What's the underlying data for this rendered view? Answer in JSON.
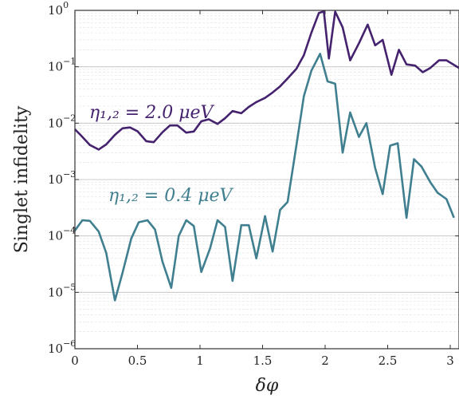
{
  "chart_data": {
    "type": "line",
    "title": "",
    "xlabel": "δφ",
    "ylabel": "Singlet infidelity",
    "xlim": [
      0,
      3.07
    ],
    "ylim": [
      1e-06,
      1
    ],
    "yscale": "log",
    "grid": {
      "x": false,
      "y_major": true,
      "y_minor": true
    },
    "xticks": [
      0,
      0.5,
      1,
      1.5,
      2,
      2.5,
      3
    ],
    "xtick_labels": [
      "0",
      "0.5",
      "1",
      "1.5",
      "2",
      "2.5",
      "3"
    ],
    "yticks": [
      1e-06,
      1e-05,
      0.0001,
      0.001,
      0.01,
      0.1,
      1
    ],
    "ytick_labels": [
      {
        "base": "10",
        "exp": "−6"
      },
      {
        "base": "10",
        "exp": "−5"
      },
      {
        "base": "10",
        "exp": "−4"
      },
      {
        "base": "10",
        "exp": "−3"
      },
      {
        "base": "10",
        "exp": "−2"
      },
      {
        "base": "10",
        "exp": "−1"
      },
      {
        "base": "10",
        "exp": "0"
      }
    ],
    "series": [
      {
        "annotation": "η₁,₂ = 2.0 μeV",
        "color": "#45226e",
        "points": [
          [
            0,
            0.0078
          ],
          [
            0.05,
            0.006
          ],
          [
            0.12,
            0.0041
          ],
          [
            0.19,
            0.0034
          ],
          [
            0.25,
            0.0042
          ],
          [
            0.32,
            0.0062
          ],
          [
            0.38,
            0.0081
          ],
          [
            0.44,
            0.0084
          ],
          [
            0.5,
            0.0072
          ],
          [
            0.57,
            0.0048
          ],
          [
            0.63,
            0.0046
          ],
          [
            0.7,
            0.0069
          ],
          [
            0.76,
            0.0091
          ],
          [
            0.82,
            0.0091
          ],
          [
            0.89,
            0.0068
          ],
          [
            0.95,
            0.0071
          ],
          [
            1.01,
            0.0108
          ],
          [
            1.07,
            0.0117
          ],
          [
            1.14,
            0.0097
          ],
          [
            1.2,
            0.0122
          ],
          [
            1.26,
            0.0164
          ],
          [
            1.33,
            0.015
          ],
          [
            1.39,
            0.0194
          ],
          [
            1.45,
            0.0237
          ],
          [
            1.52,
            0.028
          ],
          [
            1.58,
            0.035
          ],
          [
            1.64,
            0.045
          ],
          [
            1.7,
            0.062
          ],
          [
            1.77,
            0.092
          ],
          [
            1.83,
            0.16
          ],
          [
            1.89,
            0.4
          ],
          [
            1.95,
            0.9
          ],
          [
            1.99,
            0.96
          ],
          [
            2.03,
            0.14
          ],
          [
            2.08,
            0.95
          ],
          [
            2.14,
            0.5
          ],
          [
            2.2,
            0.13
          ],
          [
            2.27,
            0.26
          ],
          [
            2.34,
            0.56
          ],
          [
            2.4,
            0.24
          ],
          [
            2.46,
            0.3
          ],
          [
            2.53,
            0.072
          ],
          [
            2.59,
            0.2
          ],
          [
            2.65,
            0.11
          ],
          [
            2.72,
            0.105
          ],
          [
            2.78,
            0.08
          ],
          [
            2.84,
            0.095
          ],
          [
            2.91,
            0.13
          ],
          [
            2.97,
            0.13
          ],
          [
            3.07,
            0.095
          ]
        ]
      },
      {
        "annotation": "η₁,₂ = 0.4 μeV",
        "color": "#3f7f8f",
        "points": [
          [
            0,
            0.000125
          ],
          [
            0.06,
            0.00019
          ],
          [
            0.12,
            0.000185
          ],
          [
            0.19,
            0.00012
          ],
          [
            0.25,
            5e-05
          ],
          [
            0.32,
            7.2e-06
          ],
          [
            0.38,
            2.2e-05
          ],
          [
            0.45,
            9e-05
          ],
          [
            0.51,
            0.000175
          ],
          [
            0.58,
            0.00019
          ],
          [
            0.64,
            0.00013
          ],
          [
            0.7,
            3.5e-05
          ],
          [
            0.77,
            1.2e-05
          ],
          [
            0.83,
            0.0001
          ],
          [
            0.89,
            0.00019
          ],
          [
            0.95,
            0.00015
          ],
          [
            1.01,
            2.3e-05
          ],
          [
            1.08,
            6e-05
          ],
          [
            1.14,
            0.00019
          ],
          [
            1.2,
            0.000145
          ],
          [
            1.26,
            1.6e-05
          ],
          [
            1.33,
            0.000155
          ],
          [
            1.39,
            0.000155
          ],
          [
            1.45,
            4e-05
          ],
          [
            1.52,
            0.000225
          ],
          [
            1.58,
            5.3e-05
          ],
          [
            1.64,
            0.00029
          ],
          [
            1.7,
            0.0004
          ],
          [
            1.77,
            0.004
          ],
          [
            1.83,
            0.03
          ],
          [
            1.89,
            0.085
          ],
          [
            1.96,
            0.17
          ],
          [
            2.02,
            0.055
          ],
          [
            2.08,
            0.05
          ],
          [
            2.14,
            0.003
          ],
          [
            2.2,
            0.0155
          ],
          [
            2.27,
            0.0057
          ],
          [
            2.33,
            0.01
          ],
          [
            2.4,
            0.0016
          ],
          [
            2.46,
            0.00055
          ],
          [
            2.52,
            0.004
          ],
          [
            2.58,
            0.0044
          ],
          [
            2.65,
            0.00021
          ],
          [
            2.71,
            0.0023
          ],
          [
            2.77,
            0.0017
          ],
          [
            2.84,
            0.0009
          ],
          [
            2.9,
            0.00058
          ],
          [
            2.97,
            0.00045
          ],
          [
            3.03,
            0.00021
          ]
        ]
      }
    ]
  }
}
